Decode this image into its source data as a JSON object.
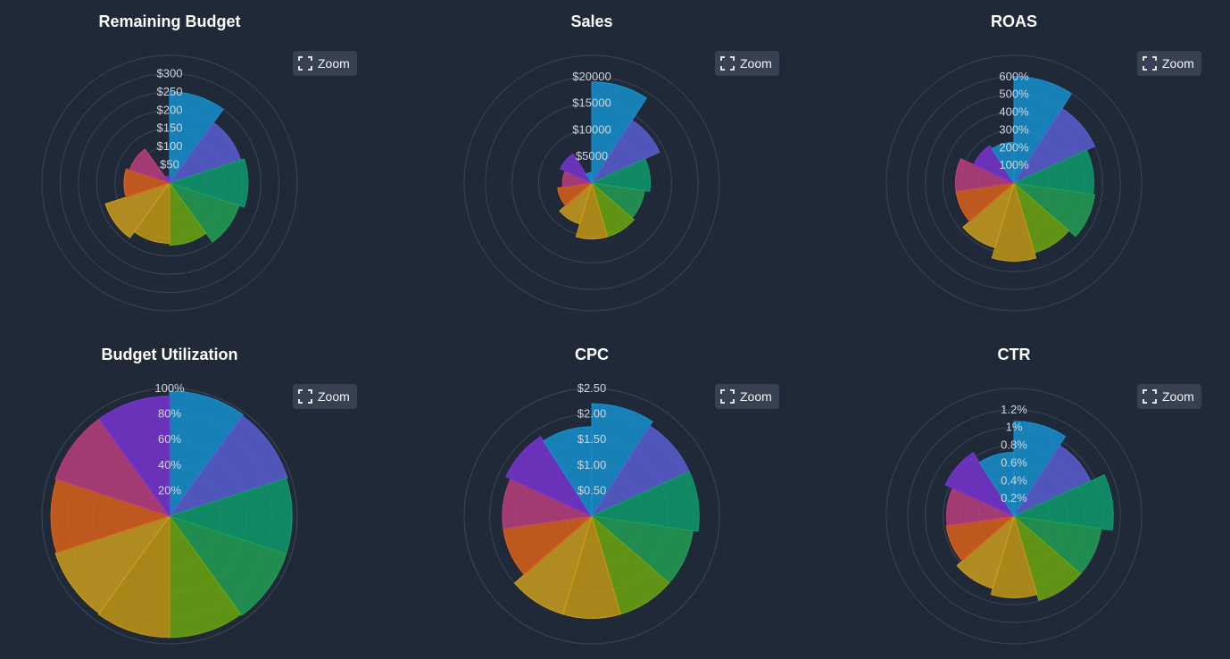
{
  "zoom_label": "Zoom",
  "chart_data": [
    {
      "type": "polarArea",
      "title": "Remaining Budget",
      "rmax": 350,
      "ticks": [
        50,
        100,
        150,
        200,
        250,
        300
      ],
      "tick_labels": [
        "$50",
        "$100",
        "$150",
        "$200",
        "$250",
        "$300"
      ],
      "values": [
        250,
        205,
        215,
        200,
        170,
        165,
        185,
        125,
        115,
        20
      ]
    },
    {
      "type": "polarArea",
      "title": "Sales",
      "rmax": 24000,
      "ticks": [
        5000,
        10000,
        15000,
        20000
      ],
      "tick_labels": [
        "$5000",
        "$10000",
        "$15000",
        "$20000"
      ],
      "values": [
        19000,
        14000,
        11000,
        10000,
        10500,
        10500,
        8000,
        6500,
        5500,
        6500,
        2000
      ]
    },
    {
      "type": "polarArea",
      "title": "ROAS",
      "rmax": 720,
      "ticks": [
        100,
        200,
        300,
        400,
        500,
        600
      ],
      "tick_labels": [
        "100%",
        "200%",
        "300%",
        "400%",
        "500%",
        "600%"
      ],
      "values": [
        600,
        500,
        450,
        460,
        410,
        440,
        380,
        330,
        330,
        250,
        230
      ]
    },
    {
      "type": "polarArea",
      "title": "Budget Utilization",
      "rmax": 100,
      "ticks": [
        20,
        40,
        60,
        80,
        100
      ],
      "tick_labels": [
        "20%",
        "40%",
        "60%",
        "80%",
        "100%"
      ],
      "values": [
        98,
        97,
        96,
        96,
        95,
        95,
        94,
        93,
        94,
        94
      ]
    },
    {
      "type": "polarArea",
      "title": "CPC",
      "rmax": 2.5,
      "ticks": [
        0.5,
        1,
        1.5,
        2,
        2.5
      ],
      "tick_labels": [
        "$0.50",
        "$1.00",
        "$1.50",
        "$2.00",
        "$2.50"
      ],
      "values": [
        2.2,
        2.1,
        2.1,
        2.0,
        2.0,
        2.0,
        2.0,
        1.75,
        1.75,
        1.85,
        1.75
      ]
    },
    {
      "type": "polarArea",
      "title": "CTR",
      "rmax": 1.44,
      "ticks": [
        0.2,
        0.4,
        0.6,
        0.8,
        1.0,
        1.2
      ],
      "tick_labels": [
        "0.2%",
        "0.4%",
        "0.6%",
        "0.8%",
        "1%",
        "1.2%"
      ],
      "values": [
        1.07,
        0.95,
        1.12,
        0.99,
        0.99,
        0.92,
        0.85,
        0.77,
        0.76,
        0.85,
        0.72
      ]
    }
  ],
  "colors": {
    "background": "#1f2937",
    "grid": "#3b4556",
    "series": [
      "#1694d2",
      "#5b5fd6",
      "#0f9e6e",
      "#22a155",
      "#6fa90f",
      "#c79b13",
      "#d1a11c",
      "#e0631a",
      "#c0407e",
      "#7a35d4"
    ]
  }
}
